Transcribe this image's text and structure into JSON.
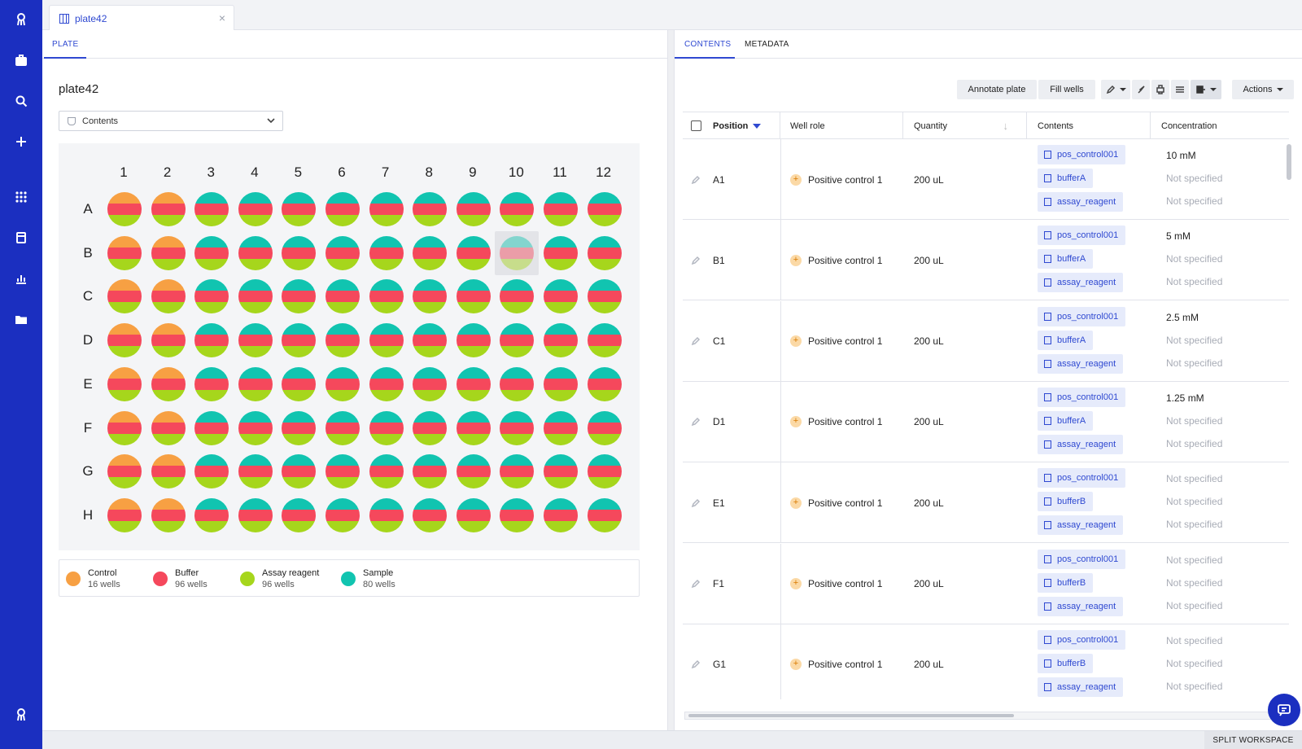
{
  "tab": {
    "title": "plate42",
    "close_label": "×"
  },
  "left": {
    "tab_label": "PLATE",
    "plate_name": "plate42",
    "view_select": "Contents",
    "columns": [
      "1",
      "2",
      "3",
      "4",
      "5",
      "6",
      "7",
      "8",
      "9",
      "10",
      "11",
      "12"
    ],
    "rows": [
      "A",
      "B",
      "C",
      "D",
      "E",
      "F",
      "G",
      "H"
    ],
    "highlighted_well": "B10",
    "legend": [
      {
        "name": "Control",
        "count": "16 wells",
        "color": "#f7a043"
      },
      {
        "name": "Buffer",
        "count": "96 wells",
        "color": "#f5485c"
      },
      {
        "name": "Assay reagent",
        "count": "96 wells",
        "color": "#a6d61c"
      },
      {
        "name": "Sample",
        "count": "80 wells",
        "color": "#11c4b0"
      }
    ]
  },
  "right": {
    "tabs": [
      {
        "label": "CONTENTS",
        "active": true
      },
      {
        "label": "METADATA",
        "active": false
      }
    ],
    "toolbar": {
      "annotate_label": "Annotate plate",
      "fill_label": "Fill wells",
      "actions_label": "Actions"
    },
    "columns": {
      "position": "Position",
      "well_role": "Well role",
      "quantity": "Quantity",
      "contents": "Contents",
      "concentration": "Concentration"
    },
    "rows": [
      {
        "position": "A1",
        "role": "Positive control 1",
        "quantity": "200 uL",
        "contents": [
          "pos_control001",
          "bufferA",
          "assay_reagent"
        ],
        "concentrations": [
          "10 mM",
          "Not specified",
          "Not specified"
        ]
      },
      {
        "position": "B1",
        "role": "Positive control 1",
        "quantity": "200 uL",
        "contents": [
          "pos_control001",
          "bufferA",
          "assay_reagent"
        ],
        "concentrations": [
          "5 mM",
          "Not specified",
          "Not specified"
        ]
      },
      {
        "position": "C1",
        "role": "Positive control 1",
        "quantity": "200 uL",
        "contents": [
          "pos_control001",
          "bufferA",
          "assay_reagent"
        ],
        "concentrations": [
          "2.5 mM",
          "Not specified",
          "Not specified"
        ]
      },
      {
        "position": "D1",
        "role": "Positive control 1",
        "quantity": "200 uL",
        "contents": [
          "pos_control001",
          "bufferA",
          "assay_reagent"
        ],
        "concentrations": [
          "1.25 mM",
          "Not specified",
          "Not specified"
        ]
      },
      {
        "position": "E1",
        "role": "Positive control 1",
        "quantity": "200 uL",
        "contents": [
          "pos_control001",
          "bufferB",
          "assay_reagent"
        ],
        "concentrations": [
          "Not specified",
          "Not specified",
          "Not specified"
        ]
      },
      {
        "position": "F1",
        "role": "Positive control 1",
        "quantity": "200 uL",
        "contents": [
          "pos_control001",
          "bufferB",
          "assay_reagent"
        ],
        "concentrations": [
          "Not specified",
          "Not specified",
          "Not specified"
        ]
      },
      {
        "position": "G1",
        "role": "Positive control 1",
        "quantity": "200 uL",
        "contents": [
          "pos_control001",
          "bufferB",
          "assay_reagent"
        ],
        "concentrations": [
          "Not specified",
          "Not specified",
          "Not specified"
        ]
      }
    ]
  },
  "bottom": {
    "split_label": "SPLIT WORKSPACE"
  },
  "colors": {
    "accent": "#2f49d1",
    "rail": "#1b2fc0",
    "muted_text": "#a8acb6"
  }
}
